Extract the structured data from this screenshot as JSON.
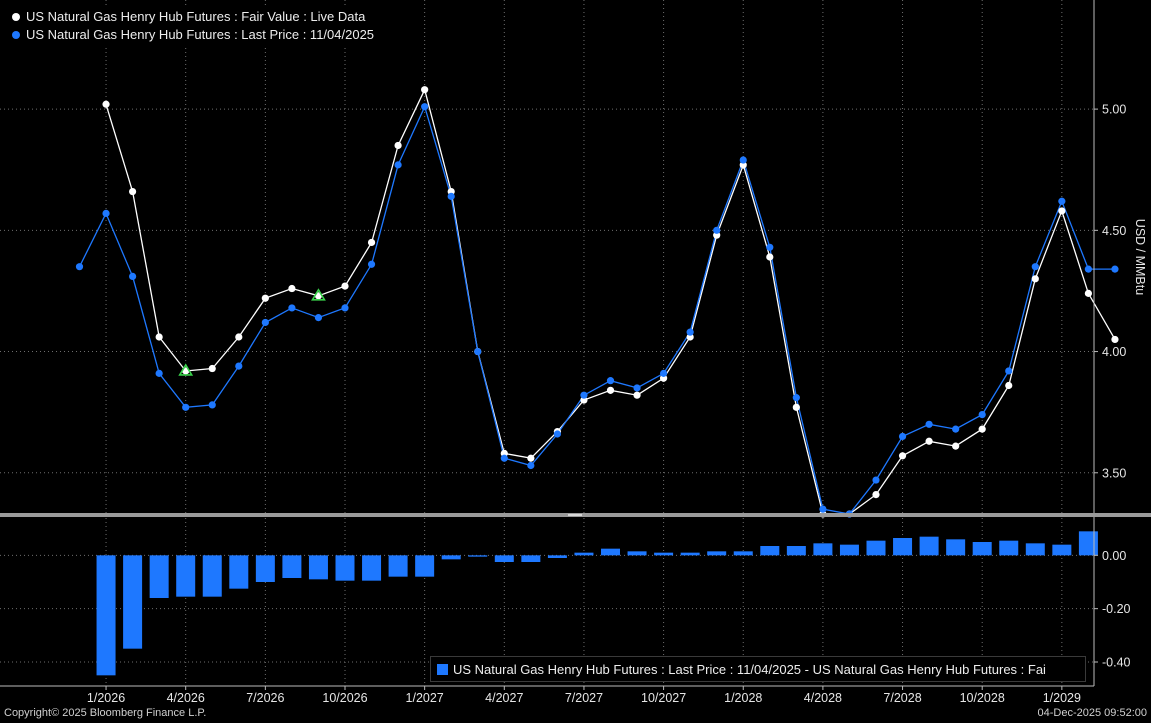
{
  "colors": {
    "background": "#000000",
    "fair_value": "#ffffff",
    "last_price": "#1e78ff",
    "grid": "#6e6e6e",
    "marker": "#39d24b"
  },
  "legend": {
    "fair_value": "US Natural Gas Henry Hub Futures : Fair Value : Live Data",
    "last_price": "US Natural Gas Henry Hub Futures : Last Price : 11/04/2025",
    "bar": "US Natural Gas Henry Hub Futures : Last Price : 11/04/2025 - US Natural Gas Henry Hub Futures : Fai"
  },
  "footer": {
    "copyright": "Copyright© 2025 Bloomberg Finance L.P.",
    "timestamp": "04-Dec-2025 09:52:00"
  },
  "chart_data": [
    {
      "type": "line",
      "ylabel": "USD / MMBtu",
      "ylim": [
        3.33,
        5.45
      ],
      "yticks": [
        "3.50",
        "4.00",
        "4.50",
        "5.00"
      ],
      "x_tick_labels": [
        "1/2026",
        "4/2026",
        "7/2026",
        "10/2026",
        "1/2027",
        "4/2027",
        "7/2027",
        "10/2027",
        "1/2028",
        "4/2028",
        "7/2028",
        "10/2028",
        "1/2029"
      ],
      "x": [
        "12/2025",
        "1/2026",
        "2/2026",
        "3/2026",
        "4/2026",
        "5/2026",
        "6/2026",
        "7/2026",
        "8/2026",
        "9/2026",
        "10/2026",
        "11/2026",
        "12/2026",
        "1/2027",
        "2/2027",
        "3/2027",
        "4/2027",
        "5/2027",
        "6/2027",
        "7/2027",
        "8/2027",
        "9/2027",
        "10/2027",
        "11/2027",
        "12/2027",
        "1/2028",
        "2/2028",
        "3/2028",
        "4/2028",
        "5/2028",
        "6/2028",
        "7/2028",
        "8/2028",
        "9/2028",
        "10/2028",
        "11/2028",
        "12/2028",
        "1/2029",
        "2/2029",
        "3/2029"
      ],
      "series": [
        {
          "name": "Fair Value : Live Data",
          "values": [
            null,
            5.02,
            4.66,
            4.06,
            3.92,
            3.93,
            4.06,
            4.22,
            4.26,
            4.23,
            4.27,
            4.45,
            4.85,
            5.08,
            4.66,
            4.0,
            3.58,
            3.56,
            3.67,
            3.8,
            3.84,
            3.82,
            3.89,
            4.06,
            4.48,
            4.77,
            4.39,
            3.77,
            3.33,
            3.33,
            3.41,
            3.57,
            3.63,
            3.61,
            3.68,
            3.86,
            4.3,
            4.58,
            4.24,
            4.05
          ]
        },
        {
          "name": "Last Price : 11/04/2025",
          "values": [
            4.35,
            4.57,
            4.31,
            3.91,
            3.77,
            3.78,
            3.94,
            4.12,
            4.18,
            4.14,
            4.18,
            4.36,
            4.77,
            5.01,
            4.64,
            4.0,
            3.56,
            3.53,
            3.66,
            3.82,
            3.88,
            3.85,
            3.91,
            4.08,
            4.5,
            4.79,
            4.43,
            3.81,
            3.35,
            3.33,
            3.47,
            3.65,
            3.7,
            3.68,
            3.74,
            3.92,
            4.35,
            4.62,
            4.34,
            4.34
          ]
        }
      ],
      "markers": [
        {
          "x": "4/2026",
          "value": 3.92
        },
        {
          "x": "9/2026",
          "value": 4.23
        }
      ]
    },
    {
      "type": "bar",
      "ylim": [
        -0.49,
        0.14
      ],
      "yticks": [
        "0.00",
        "-0.20",
        "-0.40"
      ],
      "categories": [
        "1/2026",
        "2/2026",
        "3/2026",
        "4/2026",
        "5/2026",
        "6/2026",
        "7/2026",
        "8/2026",
        "9/2026",
        "10/2026",
        "11/2026",
        "12/2026",
        "1/2027",
        "2/2027",
        "3/2027",
        "4/2027",
        "5/2027",
        "6/2027",
        "7/2027",
        "8/2027",
        "9/2027",
        "10/2027",
        "11/2027",
        "12/2027",
        "1/2028",
        "2/2028",
        "3/2028",
        "4/2028",
        "5/2028",
        "6/2028",
        "7/2028",
        "8/2028",
        "9/2028",
        "10/2028",
        "11/2028",
        "12/2028",
        "1/2029",
        "2/2029"
      ],
      "values": [
        -0.45,
        -0.35,
        -0.16,
        -0.155,
        -0.155,
        -0.125,
        -0.1,
        -0.085,
        -0.09,
        -0.095,
        -0.095,
        -0.08,
        -0.08,
        -0.015,
        -0.005,
        -0.025,
        -0.025,
        -0.01,
        0.01,
        0.025,
        0.015,
        0.01,
        0.01,
        0.015,
        0.015,
        0.035,
        0.035,
        0.045,
        0.04,
        0.055,
        0.065,
        0.07,
        0.06,
        0.05,
        0.055,
        0.045,
        0.04,
        0.09
      ]
    }
  ]
}
